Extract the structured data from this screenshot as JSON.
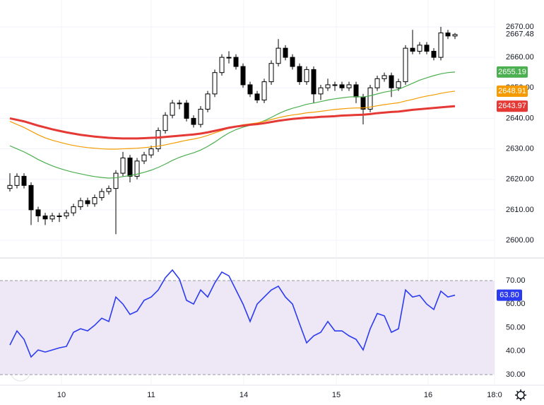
{
  "chart_data": [
    {
      "type": "candlestick",
      "xlim": [
        -1.4,
        68.6
      ],
      "xticks": [
        {
          "value": 7.3,
          "label": "10"
        },
        {
          "value": 20,
          "label": "11"
        },
        {
          "value": 33.1,
          "label": "14"
        },
        {
          "value": 46.2,
          "label": "15"
        },
        {
          "value": 59.2,
          "label": "16"
        },
        {
          "value": 68.6,
          "label": "18:0"
        }
      ],
      "ylim": [
        2594.9,
        2678.8
      ],
      "yticks": [
        {
          "value": 2600,
          "label": "2600.00"
        },
        {
          "value": 2610,
          "label": "2610.00"
        },
        {
          "value": 2620,
          "label": "2620.00"
        },
        {
          "value": 2630,
          "label": "2630.00"
        },
        {
          "value": 2640,
          "label": "2640.00"
        },
        {
          "value": 2650,
          "label": "2650.00"
        },
        {
          "value": 2660,
          "label": "2660.00"
        },
        {
          "value": 2670,
          "label": "2670.00"
        }
      ],
      "grid": true,
      "up_color": "#ffffff",
      "down_color": "#000000",
      "edge_color": "#000000",
      "ohlc": [
        [
          2617,
          2622,
          2616,
          2618
        ],
        [
          2618,
          2622,
          2617,
          2621
        ],
        [
          2621,
          2622,
          2617,
          2618
        ],
        [
          2618,
          2619,
          2605,
          2610
        ],
        [
          2610,
          2611,
          2606,
          2608
        ],
        [
          2608,
          2609,
          2605,
          2607
        ],
        [
          2607,
          2609,
          2606,
          2608
        ],
        [
          2608,
          2609,
          2606,
          2608
        ],
        [
          2608,
          2610,
          2607,
          2609
        ],
        [
          2609,
          2612,
          2608,
          2611
        ],
        [
          2611,
          2614,
          2610,
          2613
        ],
        [
          2613,
          2614,
          2611,
          2612
        ],
        [
          2612,
          2615,
          2611,
          2614
        ],
        [
          2614,
          2617,
          2613,
          2616
        ],
        [
          2616,
          2618,
          2615,
          2617
        ],
        [
          2617,
          2623,
          2602,
          2622
        ],
        [
          2622,
          2629,
          2621,
          2627
        ],
        [
          2627,
          2628,
          2619,
          2621
        ],
        [
          2621,
          2627,
          2620,
          2626
        ],
        [
          2626,
          2629,
          2625,
          2628
        ],
        [
          2628,
          2631,
          2627,
          2630
        ],
        [
          2630,
          2637,
          2629,
          2636
        ],
        [
          2636,
          2642,
          2635,
          2641
        ],
        [
          2641,
          2646,
          2640,
          2645
        ],
        [
          2645,
          2646,
          2643,
          2645
        ],
        [
          2645,
          2646,
          2639,
          2640
        ],
        [
          2640,
          2641,
          2637,
          2638
        ],
        [
          2638,
          2644,
          2637,
          2643
        ],
        [
          2643,
          2649,
          2642,
          2648
        ],
        [
          2648,
          2656,
          2647,
          2655
        ],
        [
          2655,
          2661,
          2654,
          2660
        ],
        [
          2660,
          2662,
          2658,
          2660
        ],
        [
          2660,
          2661,
          2656,
          2657
        ],
        [
          2657,
          2658,
          2650,
          2651
        ],
        [
          2651,
          2652,
          2647,
          2648
        ],
        [
          2648,
          2649,
          2645,
          2646
        ],
        [
          2646,
          2653,
          2645,
          2652
        ],
        [
          2652,
          2659,
          2651,
          2658
        ],
        [
          2658,
          2666,
          2657,
          2663
        ],
        [
          2663,
          2664,
          2659,
          2660
        ],
        [
          2660,
          2661,
          2656,
          2657
        ],
        [
          2657,
          2658,
          2651,
          2652
        ],
        [
          2652,
          2657,
          2651,
          2656
        ],
        [
          2656,
          2657,
          2645,
          2648
        ],
        [
          2648,
          2651,
          2646,
          2650
        ],
        [
          2650,
          2653,
          2649,
          2651
        ],
        [
          2651,
          2652,
          2649,
          2651
        ],
        [
          2651,
          2652,
          2649,
          2650
        ],
        [
          2650,
          2652,
          2649,
          2651
        ],
        [
          2651,
          2652,
          2645,
          2647
        ],
        [
          2647,
          2648,
          2638,
          2643
        ],
        [
          2643,
          2651,
          2642,
          2650
        ],
        [
          2650,
          2654,
          2649,
          2653
        ],
        [
          2653,
          2655,
          2652,
          2654
        ],
        [
          2654,
          2655,
          2647,
          2650
        ],
        [
          2650,
          2653,
          2649,
          2652
        ],
        [
          2652,
          2664,
          2651,
          2663
        ],
        [
          2663,
          2669,
          2661,
          2662
        ],
        [
          2662,
          2665,
          2661,
          2664
        ],
        [
          2664,
          2665,
          2661,
          2662
        ],
        [
          2662,
          2663,
          2659,
          2660
        ],
        [
          2660,
          2670,
          2659,
          2668
        ],
        [
          2668,
          2669,
          2666,
          2667
        ],
        [
          2667,
          2668,
          2666,
          2667.48
        ]
      ],
      "series": [
        {
          "color": "#4caf50",
          "values": [
            2631,
            2630,
            2629,
            2627.8,
            2626.5,
            2625.4,
            2624.4,
            2623.6,
            2622.9,
            2622.3,
            2621.8,
            2621.3,
            2620.9,
            2620.6,
            2620.4,
            2620.5,
            2620.9,
            2621.2,
            2621.7,
            2622.3,
            2623,
            2623.9,
            2625,
            2626.2,
            2627.2,
            2628,
            2628.7,
            2629.6,
            2630.8,
            2632.2,
            2633.8,
            2635.2,
            2636.3,
            2637.1,
            2637.7,
            2638.3,
            2639.2,
            2640.3,
            2641.5,
            2642.5,
            2643.3,
            2643.9,
            2644.6,
            2645,
            2645.5,
            2646,
            2646.4,
            2646.7,
            2647,
            2647.1,
            2647,
            2647.4,
            2648,
            2648.6,
            2649,
            2649.5,
            2650.5,
            2651.5,
            2652.5,
            2653.3,
            2654,
            2654.6,
            2655,
            2655.19
          ]
        },
        {
          "color": "#f59b00",
          "values": [
            2639,
            2638,
            2637,
            2635.8,
            2634.6,
            2633.6,
            2632.8,
            2632.2,
            2631.6,
            2631.1,
            2630.7,
            2630.4,
            2630.2,
            2630,
            2629.9,
            2629.9,
            2630,
            2630.1,
            2630.2,
            2630.4,
            2630.6,
            2630.9,
            2631.3,
            2631.8,
            2632.3,
            2632.8,
            2633.2,
            2633.7,
            2634.4,
            2635.2,
            2636,
            2636.8,
            2637.4,
            2637.9,
            2638.2,
            2638.5,
            2639,
            2639.6,
            2640.2,
            2640.7,
            2641.1,
            2641.4,
            2641.8,
            2642,
            2642.3,
            2642.6,
            2642.9,
            2643.1,
            2643.3,
            2643.4,
            2643.4,
            2643.7,
            2644.1,
            2644.5,
            2644.8,
            2645.1,
            2645.7,
            2646.2,
            2646.8,
            2647.3,
            2647.7,
            2648.2,
            2648.6,
            2648.91
          ]
        },
        {
          "color": "#e53935",
          "values": [
            2640,
            2639.5,
            2639,
            2638.3,
            2637.6,
            2637,
            2636.4,
            2635.9,
            2635.4,
            2635,
            2634.6,
            2634.3,
            2634,
            2633.8,
            2633.6,
            2633.5,
            2633.4,
            2633.4,
            2633.4,
            2633.5,
            2633.6,
            2633.7,
            2633.9,
            2634.1,
            2634.3,
            2634.5,
            2634.7,
            2635,
            2635.4,
            2635.9,
            2636.4,
            2636.9,
            2637.3,
            2637.6,
            2637.9,
            2638.1,
            2638.4,
            2638.8,
            2639.2,
            2639.5,
            2639.8,
            2640,
            2640.2,
            2640.3,
            2640.5,
            2640.6,
            2640.7,
            2640.9,
            2641,
            2641.1,
            2641.2,
            2641.4,
            2641.7,
            2641.9,
            2642.1,
            2642.2,
            2642.5,
            2642.8,
            2643,
            2643.2,
            2643.4,
            2643.6,
            2643.8,
            2643.97
          ]
        }
      ]
    },
    {
      "type": "line",
      "xlim": [
        -1.4,
        68.6
      ],
      "ylim": [
        25.5,
        78.7
      ],
      "yticks": [
        {
          "value": 30,
          "label": "30.00"
        },
        {
          "value": 40,
          "label": "40.00"
        },
        {
          "value": 50,
          "label": "50.00"
        },
        {
          "value": 60,
          "label": "60.00"
        },
        {
          "value": 70,
          "label": "70.00"
        }
      ],
      "band": [
        30,
        70
      ],
      "band_color": "#ede7f6",
      "color": "#2b3bf0",
      "values": [
        42.6,
        48.6,
        45,
        37.5,
        40.5,
        39.6,
        40.5,
        41.4,
        42,
        48,
        49.5,
        48.6,
        51,
        54,
        52.6,
        63,
        60,
        55.6,
        57,
        61.6,
        63,
        66,
        71.2,
        74.5,
        70.6,
        61.6,
        60,
        66,
        63,
        69,
        73.6,
        72,
        66,
        60,
        52.6,
        60,
        63,
        66,
        67.6,
        63,
        60,
        51.6,
        43.5,
        46.5,
        48,
        52.6,
        48.6,
        48.6,
        46.5,
        45,
        40.5,
        49.5,
        56,
        55,
        48,
        49.5,
        66,
        63,
        63.7,
        60,
        57.7,
        65.5,
        63,
        63.8
      ],
      "last_value_label": "63.80"
    }
  ]
}
